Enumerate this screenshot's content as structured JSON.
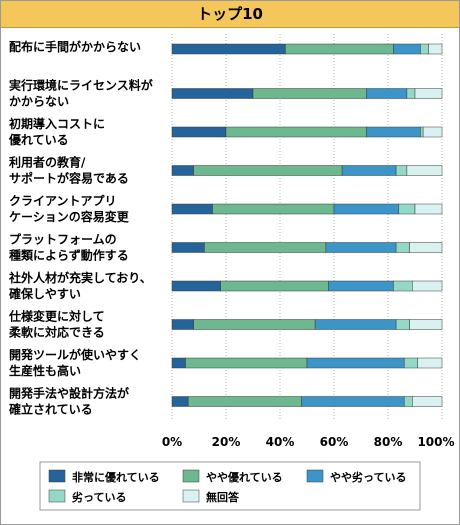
{
  "title": "トップ10",
  "chart_data": {
    "type": "bar",
    "orientation": "horizontal",
    "stacked": true,
    "categories": [
      [
        "配布に手間がかからない"
      ],
      [
        "実行環境にライセンス料が",
        "かからない"
      ],
      [
        "初期導入コストに",
        "優れている"
      ],
      [
        "利用者の教育/",
        "サポートが容易である"
      ],
      [
        "クライアントアプリ",
        "ケーションの容易変更"
      ],
      [
        "プラットフォームの",
        "種類によらず動作する"
      ],
      [
        "社外人材が充実しており、",
        "確保しやすい"
      ],
      [
        "仕様変更に対して",
        "柔軟に対応できる"
      ],
      [
        "開発ツールが使いやすく",
        "生産性も高い"
      ],
      [
        "開発手法や設計方法が",
        "確立されている"
      ]
    ],
    "series": [
      {
        "name": "非常に優れている",
        "color": "#25649a",
        "values": [
          42,
          30,
          20,
          8,
          15,
          12,
          18,
          8,
          5,
          6
        ]
      },
      {
        "name": "やや優れている",
        "color": "#6db88e",
        "values": [
          40,
          42,
          52,
          55,
          45,
          45,
          40,
          45,
          45,
          42
        ]
      },
      {
        "name": "やや劣っている",
        "color": "#3c95c8",
        "values": [
          10,
          15,
          20,
          20,
          24,
          26,
          24,
          30,
          36,
          38
        ]
      },
      {
        "name": "劣っている",
        "color": "#94d9c8",
        "values": [
          3,
          3,
          1,
          4,
          6,
          5,
          7,
          5,
          5,
          3
        ]
      },
      {
        "name": "無回答",
        "color": "#d9f1f1",
        "values": [
          5,
          10,
          7,
          13,
          10,
          12,
          11,
          12,
          9,
          11
        ]
      }
    ],
    "xticks": [
      "0%",
      "20%",
      "40%",
      "60%",
      "80%",
      "100%"
    ],
    "xlim": [
      0,
      100
    ],
    "grid": true,
    "legend_position": "bottom"
  }
}
